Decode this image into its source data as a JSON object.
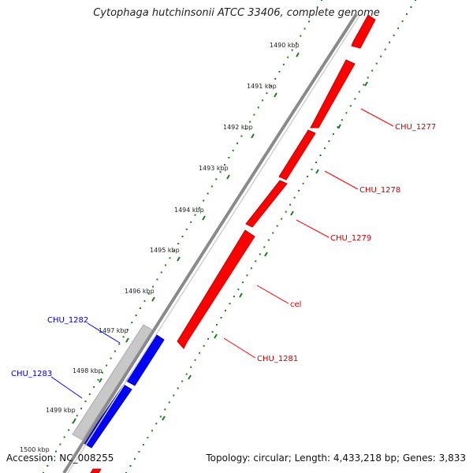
{
  "title": "Cytophaga hutchinsonii ATCC 33406, complete genome",
  "footer": {
    "accession": "Accession: NC_008255",
    "summary": "Topology: circular; Length: 4,433,218 bp; Genes: 3,833"
  },
  "colors": {
    "forward_strand": "#ff0000",
    "reverse_strand": "#0000ff",
    "other_feature": "#c8c8c8",
    "backbone": "#909090",
    "tick_dots": "#1f7a1f"
  },
  "ruler_labels": [
    "1490 kbp",
    "1491 kbp",
    "1492 kbp",
    "1493 kbp",
    "1494 kbp",
    "1495 kbp",
    "1496 kbp",
    "1497 kbp",
    "1498 kbp",
    "1499 kbp",
    "1500 kbp"
  ],
  "gene_labels_forward": [
    "CHU_1277",
    "CHU_1278",
    "CHU_1279",
    "cel",
    "CHU_1281"
  ],
  "gene_labels_reverse": [
    "CHU_1282",
    "CHU_1283"
  ]
}
